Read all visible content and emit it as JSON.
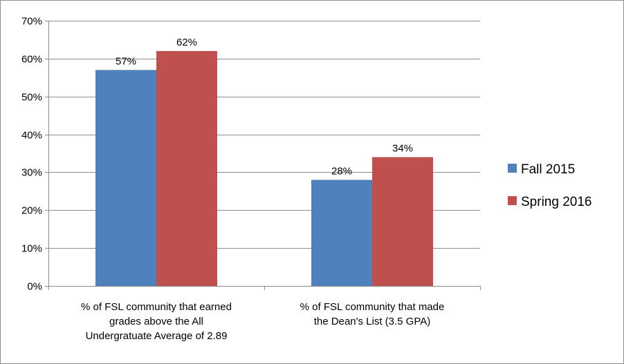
{
  "chart_data": {
    "type": "bar",
    "categories": [
      [
        "% of FSL community that earned",
        "grades above the All",
        "Undergratuate Average of 2.89"
      ],
      [
        "% of FSL community that made",
        "the Dean's List (3.5 GPA)"
      ]
    ],
    "series": [
      {
        "name": "Fall 2015",
        "color": "#4f81bd",
        "values": [
          57,
          28
        ],
        "labels": [
          "57%",
          "28%"
        ]
      },
      {
        "name": "Spring 2016",
        "color": "#c0504d",
        "values": [
          62,
          34
        ],
        "labels": [
          "62%",
          "34%"
        ]
      }
    ],
    "ylim": [
      0,
      70
    ],
    "yticks": [
      0,
      10,
      20,
      30,
      40,
      50,
      60,
      70
    ],
    "ytick_labels": [
      "0%",
      "10%",
      "20%",
      "30%",
      "40%",
      "50%",
      "60%",
      "70%"
    ],
    "grid": true,
    "legend_position": "right"
  }
}
